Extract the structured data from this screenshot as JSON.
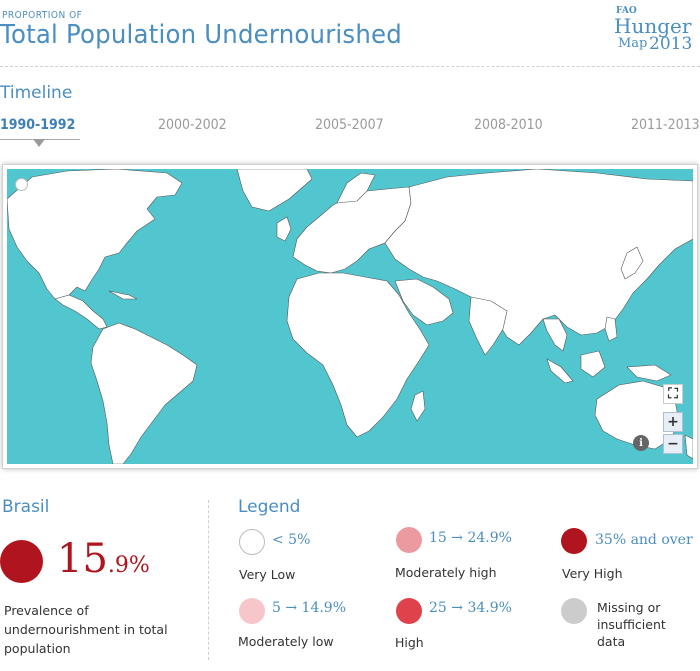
{
  "header": {
    "kicker": "PROPORTION OF",
    "title": "Total Population Undernourished",
    "logo": {
      "fao": "FAO",
      "hunger": "Hunger",
      "map": "Map",
      "year": "2013"
    }
  },
  "timeline": {
    "label": "Timeline",
    "items": [
      "1990-1992",
      "2000-2002",
      "2005-2007",
      "2008-2010",
      "2011-2013"
    ],
    "active_index": 0
  },
  "map": {
    "ocean_color": "#52c6cf",
    "land_color": "#ffffff",
    "controls": {
      "zoom_in": "+",
      "zoom_out": "−",
      "info": "i",
      "fullscreen": "⛶"
    }
  },
  "country": {
    "name": "Brasil",
    "value_int": "15",
    "value_dec": ".9%",
    "description": "Prevalence of undernourishment in total population",
    "color": "#b0141e"
  },
  "legend": {
    "title": "Legend",
    "items": [
      {
        "range": "< 5%",
        "label": "Very Low",
        "color": "#ffffff"
      },
      {
        "range": "15 → 24.9%",
        "label": "Moderately high",
        "color": "#eb9aa0"
      },
      {
        "range": "35% and over",
        "label": "Very High",
        "color": "#b0141e"
      },
      {
        "range": "5 → 14.9%",
        "label": "Moderately low",
        "color": "#f6c6ca"
      },
      {
        "range": "25 → 34.9%",
        "label": "High",
        "color": "#e0424c"
      },
      {
        "range": "",
        "label": "Missing or insufficient data",
        "color": "#cccccc"
      }
    ]
  }
}
